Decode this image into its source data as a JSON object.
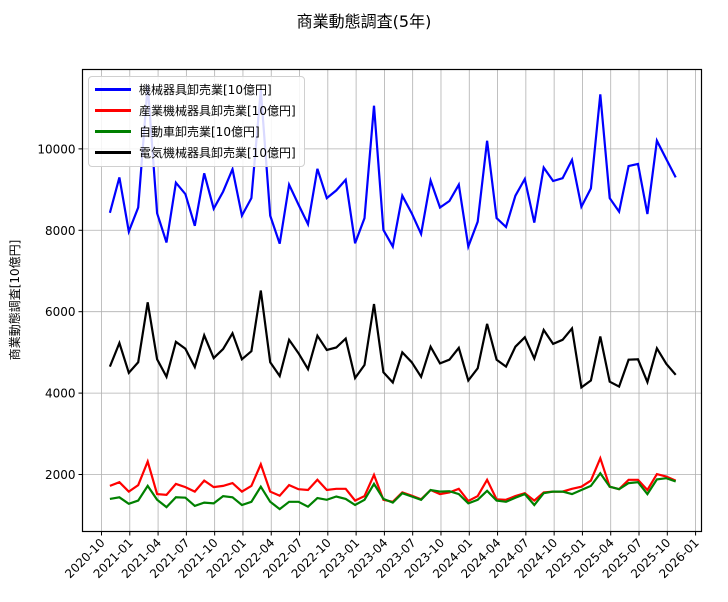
{
  "chart_data": {
    "type": "line",
    "title": "商業動態調査(5年)",
    "xlabel": "",
    "ylabel": "商業動態調査[10億円]",
    "ylim": [
      600,
      11950
    ],
    "xlim": [
      "2020-09",
      "2026-02"
    ],
    "grid": true,
    "legend_position": "upper left",
    "yticks": [
      2000,
      4000,
      6000,
      8000,
      10000
    ],
    "ytick_labels": [
      "2000",
      "4000",
      "6000",
      "8000",
      "10000"
    ],
    "xtick_labels": [
      "2020-10",
      "2021-01",
      "2021-04",
      "2021-07",
      "2021-10",
      "2022-01",
      "2022-04",
      "2022-07",
      "2022-10",
      "2023-01",
      "2023-04",
      "2023-07",
      "2023-10",
      "2024-01",
      "2024-04",
      "2024-07",
      "2024-10",
      "2025-01",
      "2025-04",
      "2025-07",
      "2025-10",
      "2026-01"
    ],
    "x": [
      "2020-11",
      "2020-12",
      "2021-01",
      "2021-02",
      "2021-03",
      "2021-04",
      "2021-05",
      "2021-06",
      "2021-07",
      "2021-08",
      "2021-09",
      "2021-10",
      "2021-11",
      "2021-12",
      "2022-01",
      "2022-02",
      "2022-03",
      "2022-04",
      "2022-05",
      "2022-06",
      "2022-07",
      "2022-08",
      "2022-09",
      "2022-10",
      "2022-11",
      "2022-12",
      "2023-01",
      "2023-02",
      "2023-03",
      "2023-04",
      "2023-05",
      "2023-06",
      "2023-07",
      "2023-08",
      "2023-09",
      "2023-10",
      "2023-11",
      "2023-12",
      "2024-01",
      "2024-02",
      "2024-03",
      "2024-04",
      "2024-05",
      "2024-06",
      "2024-07",
      "2024-08",
      "2024-09",
      "2024-10",
      "2024-11",
      "2024-12",
      "2025-01",
      "2025-02",
      "2025-03",
      "2025-04",
      "2025-05",
      "2025-06",
      "2025-07",
      "2025-08",
      "2025-09",
      "2025-10",
      "2025-11"
    ],
    "series": [
      {
        "name": "機械器具卸売業[10億円]",
        "color": "#0000ff",
        "values": [
          8430,
          9300,
          7970,
          8560,
          11570,
          8420,
          7700,
          9170,
          8890,
          8110,
          9400,
          8530,
          8950,
          9500,
          8360,
          8790,
          11450,
          8360,
          7670,
          9120,
          8630,
          8150,
          9510,
          8790,
          8980,
          9240,
          7680,
          8300,
          11060,
          8010,
          7600,
          8850,
          8420,
          7910,
          9220,
          8560,
          8720,
          9120,
          7600,
          8210,
          10200,
          8300,
          8080,
          8850,
          9260,
          8190,
          9540,
          9210,
          9280,
          9730,
          8580,
          9030,
          11340,
          8790,
          8460,
          9580,
          9630,
          8400,
          10200,
          9750,
          9300
        ]
      },
      {
        "name": "産業機械器具卸売業[10億円]",
        "color": "#ff0000",
        "values": [
          1720,
          1810,
          1580,
          1740,
          2320,
          1520,
          1500,
          1770,
          1690,
          1580,
          1850,
          1690,
          1720,
          1790,
          1580,
          1720,
          2250,
          1580,
          1480,
          1740,
          1640,
          1620,
          1870,
          1620,
          1650,
          1650,
          1360,
          1470,
          1990,
          1380,
          1330,
          1560,
          1480,
          1390,
          1620,
          1520,
          1560,
          1650,
          1350,
          1470,
          1870,
          1390,
          1380,
          1470,
          1540,
          1360,
          1560,
          1580,
          1580,
          1650,
          1700,
          1850,
          2400,
          1700,
          1640,
          1870,
          1870,
          1620,
          2010,
          1950,
          1850
        ]
      },
      {
        "name": "自動車卸売業[10億円]",
        "color": "#008000",
        "values": [
          1400,
          1440,
          1280,
          1360,
          1720,
          1380,
          1200,
          1440,
          1430,
          1230,
          1310,
          1290,
          1470,
          1440,
          1250,
          1330,
          1700,
          1330,
          1150,
          1330,
          1330,
          1210,
          1420,
          1380,
          1460,
          1400,
          1250,
          1380,
          1770,
          1400,
          1310,
          1540,
          1460,
          1380,
          1620,
          1580,
          1590,
          1520,
          1290,
          1380,
          1600,
          1360,
          1330,
          1430,
          1520,
          1250,
          1540,
          1580,
          1580,
          1520,
          1620,
          1720,
          2030,
          1700,
          1640,
          1790,
          1810,
          1520,
          1880,
          1910,
          1830
        ]
      },
      {
        "name": "電気機械器具卸売業[10億円]",
        "color": "#000000",
        "values": [
          4650,
          5230,
          4500,
          4760,
          6230,
          4830,
          4400,
          5260,
          5090,
          4640,
          5420,
          4860,
          5080,
          5470,
          4830,
          5030,
          6520,
          4760,
          4420,
          5310,
          4980,
          4590,
          5410,
          5060,
          5120,
          5340,
          4370,
          4690,
          6190,
          4510,
          4260,
          5000,
          4760,
          4400,
          5140,
          4730,
          4820,
          5110,
          4310,
          4610,
          5700,
          4820,
          4650,
          5140,
          5370,
          4850,
          5550,
          5210,
          5310,
          5590,
          4140,
          4310,
          5390,
          4280,
          4160,
          4820,
          4830,
          4270,
          5100,
          4720,
          4450
        ]
      }
    ]
  }
}
